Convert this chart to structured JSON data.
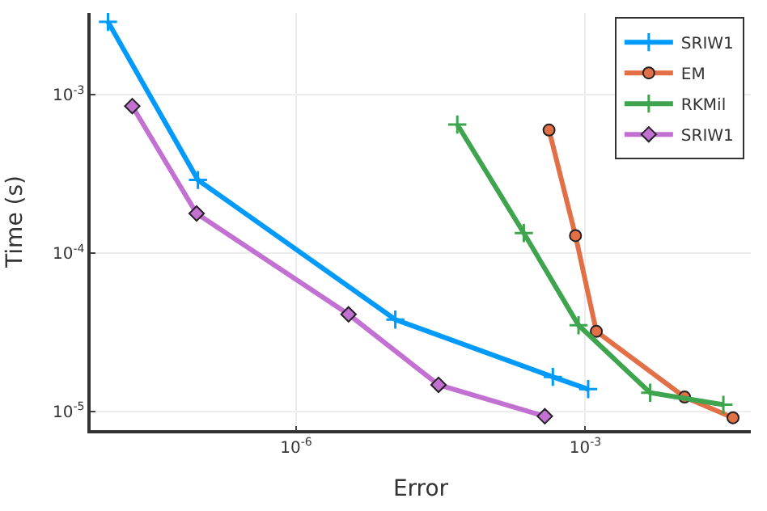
{
  "chart_data": {
    "type": "line",
    "xlabel": "Error",
    "ylabel": "Time (s)",
    "log": "xy",
    "grid": true,
    "legend": "top right",
    "line_style": "solid",
    "xlim": [
      7.4e-09,
      0.052
    ],
    "ylim": [
      7.6e-06,
      0.0033
    ],
    "xticks": [
      {
        "value": 1e-06,
        "label": "10$^{-6}$"
      },
      {
        "value": 0.001,
        "label": "10$^{-3}$"
      }
    ],
    "yticks": [
      {
        "value": 1e-05,
        "label": "10$^{-5}$"
      },
      {
        "value": 0.0001,
        "label": "10$^{-4}$"
      },
      {
        "value": 0.001,
        "label": "10$^{-3}$"
      }
    ],
    "series": [
      {
        "name": "SRIW1",
        "color": "#009afa",
        "marker": "cross",
        "x": [
          1.12e-08,
          9.6e-08,
          1.07e-05,
          0.00046,
          0.00107
        ],
        "values": [
          0.0029,
          0.00029,
          3.8e-05,
          1.65e-05,
          1.38e-05
        ]
      },
      {
        "name": "EM",
        "color": "#e26f46",
        "marker": "circle",
        "x": [
          0.00042,
          0.00079,
          0.0013,
          0.0107,
          0.034
        ],
        "values": [
          0.0006,
          0.000129,
          3.2e-05,
          1.23e-05,
          9.1e-06
        ]
      },
      {
        "name": "RKMil",
        "color": "#3ea44e",
        "marker": "cross",
        "x": [
          4.7e-05,
          0.00023,
          0.00085,
          0.0047,
          0.027
        ],
        "values": [
          0.00065,
          0.000134,
          3.5e-05,
          1.31e-05,
          1.1e-05
        ]
      },
      {
        "name": "SRIW1",
        "color": "#c271d2",
        "marker": "diamond",
        "x": [
          2e-08,
          9.3e-08,
          3.5e-06,
          3e-05,
          0.00038
        ],
        "values": [
          0.00085,
          0.000178,
          4.1e-05,
          1.47e-05,
          9.3e-06
        ]
      }
    ]
  }
}
